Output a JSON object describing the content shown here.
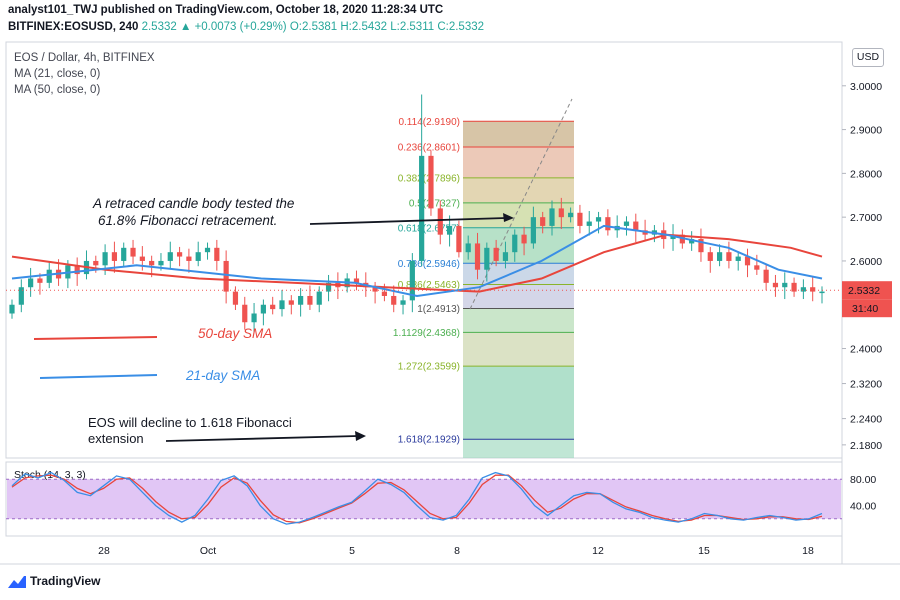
{
  "header": {
    "line1": "analyst101_TWJ published on TradingView.com, October 18, 2020 11:28:34 UTC",
    "symbol": "BITFINEX:EOSUSD, 240",
    "price": "2.5332",
    "change": "+0.0073 (+0.29%)",
    "ohlc": "O:2.5381 H:2.5432 L:2.5311 C:2.5332"
  },
  "legend": {
    "title": "EOS / Dollar, 4h, BITFINEX",
    "ma21": "MA (21, close, 0)",
    "ma50": "MA (50, close, 0)"
  },
  "currency": "USD",
  "last_price_label": "2.5332",
  "countdown_label": "31:40",
  "footer_brand": "TradingView",
  "annotations": {
    "fib_note_line1": "A retraced  candle body tested the",
    "fib_note_line2": "61.8% Fibonacci retracement.",
    "decline_line1": "EOS will decline to 1.618 Fibonacci",
    "decline_line2": "extension",
    "sma50": "50-day SMA",
    "sma21": "21-day SMA"
  },
  "stoch_label": "Stoch (14, 3, 3)",
  "colors": {
    "up": "#26a69a",
    "down": "#ef5350",
    "ma21": "#3a8ee6",
    "ma50": "#e8453c",
    "stoch_k": "#3a8ee6",
    "stoch_d": "#e8453c",
    "stoch_band": "#d7b3f2"
  },
  "chart_data": [
    {
      "type": "candlestick",
      "title": "EOS / Dollar, 4h, BITFINEX",
      "x_tick_labels": [
        "28",
        "Oct",
        "5",
        "8",
        "12",
        "15",
        "18"
      ],
      "y_tick_labels": [
        "3.0000",
        "2.9000",
        "2.8000",
        "2.7000",
        "2.6000",
        "2.4000",
        "2.3200",
        "2.2400",
        "2.1800"
      ],
      "ylim": [
        2.15,
        3.1
      ],
      "price_series": [
        2.5,
        2.54,
        2.56,
        2.55,
        2.58,
        2.56,
        2.59,
        2.57,
        2.6,
        2.59,
        2.62,
        2.6,
        2.63,
        2.61,
        2.6,
        2.59,
        2.6,
        2.62,
        2.61,
        2.6,
        2.62,
        2.63,
        2.6,
        2.53,
        2.5,
        2.46,
        2.48,
        2.5,
        2.49,
        2.51,
        2.5,
        2.52,
        2.5,
        2.53,
        2.55,
        2.54,
        2.56,
        2.55,
        2.54,
        2.53,
        2.52,
        2.5,
        2.51,
        2.6,
        2.84,
        2.72,
        2.66,
        2.68,
        2.62,
        2.64,
        2.58,
        2.63,
        2.6,
        2.62,
        2.66,
        2.64,
        2.7,
        2.68,
        2.72,
        2.7,
        2.71,
        2.68,
        2.69,
        2.7,
        2.67,
        2.68,
        2.69,
        2.67,
        2.66,
        2.67,
        2.65,
        2.66,
        2.64,
        2.65,
        2.62,
        2.6,
        2.62,
        2.6,
        2.61,
        2.59,
        2.58,
        2.55,
        2.54,
        2.55,
        2.53,
        2.54,
        2.53,
        2.53
      ],
      "spike_high": 2.98,
      "ma21": [
        [
          0,
          2.56
        ],
        [
          20,
          2.59
        ],
        [
          40,
          2.56
        ],
        [
          55,
          2.55
        ],
        [
          65,
          2.52
        ],
        [
          75,
          2.54
        ],
        [
          85,
          2.6
        ],
        [
          95,
          2.68
        ],
        [
          105,
          2.66
        ],
        [
          115,
          2.63
        ],
        [
          123,
          2.58
        ],
        [
          130,
          2.56
        ]
      ],
      "ma50": [
        [
          0,
          2.61
        ],
        [
          15,
          2.58
        ],
        [
          30,
          2.56
        ],
        [
          45,
          2.55
        ],
        [
          60,
          2.54
        ],
        [
          75,
          2.53
        ],
        [
          85,
          2.56
        ],
        [
          95,
          2.62
        ],
        [
          105,
          2.66
        ],
        [
          115,
          2.65
        ],
        [
          125,
          2.63
        ],
        [
          130,
          2.61
        ]
      ],
      "fibonacci": [
        {
          "ratio": "0.114",
          "price": 2.919,
          "label": "0.114(2.9190)",
          "color": "#e8453c"
        },
        {
          "ratio": "0.236",
          "price": 2.8601,
          "label": "0.236(2.8601)",
          "color": "#e8453c"
        },
        {
          "ratio": "0.382",
          "price": 2.7896,
          "label": "0.382(2.7896)",
          "color": "#8ab42b"
        },
        {
          "ratio": "0.5",
          "price": 2.7327,
          "label": "0.5(2.7327)",
          "color": "#4caf50"
        },
        {
          "ratio": "0.618",
          "price": 2.6757,
          "label": "0.618(2.6757)",
          "color": "#26a69a"
        },
        {
          "ratio": "0.786",
          "price": 2.5946,
          "label": "0.786(2.5946)",
          "color": "#2a7fd4"
        },
        {
          "ratio": "0.886",
          "price": 2.5463,
          "label": "0.886(2.5463)",
          "color": "#8ab42b"
        },
        {
          "ratio": "1",
          "price": 2.4913,
          "label": "1(2.4913)",
          "color": "#555555"
        },
        {
          "ratio": "1.1129",
          "price": 2.4368,
          "label": "1.1129(2.4368)",
          "color": "#4caf50"
        },
        {
          "ratio": "1.272",
          "price": 2.3599,
          "label": "1.272(2.3599)",
          "color": "#8ab42b"
        },
        {
          "ratio": "1.618",
          "price": 2.1929,
          "label": "1.618(2.1929)",
          "color": "#2a3a9c"
        }
      ]
    },
    {
      "type": "line",
      "title": "Stoch (14, 3, 3)",
      "y_tick_labels": [
        "80.00",
        "40.00"
      ],
      "ylim": [
        0,
        100
      ],
      "band": [
        20,
        80
      ],
      "k": [
        70,
        88,
        82,
        90,
        78,
        60,
        55,
        70,
        85,
        80,
        60,
        40,
        25,
        15,
        25,
        50,
        78,
        85,
        70,
        40,
        20,
        12,
        15,
        22,
        30,
        38,
        45,
        62,
        80,
        72,
        60,
        40,
        22,
        18,
        25,
        50,
        82,
        90,
        85,
        65,
        40,
        25,
        40,
        55,
        60,
        58,
        45,
        35,
        30,
        22,
        18,
        15,
        20,
        28,
        25,
        20,
        18,
        22,
        25,
        22,
        18,
        20,
        28
      ],
      "d": [
        68,
        82,
        85,
        86,
        80,
        66,
        58,
        66,
        80,
        82,
        66,
        46,
        30,
        20,
        22,
        42,
        68,
        82,
        74,
        48,
        26,
        16,
        14,
        20,
        28,
        36,
        44,
        58,
        74,
        75,
        64,
        46,
        28,
        20,
        22,
        44,
        72,
        86,
        86,
        70,
        48,
        30,
        36,
        50,
        58,
        58,
        48,
        38,
        32,
        25,
        20,
        16,
        18,
        25,
        25,
        22,
        19,
        20,
        23,
        23,
        20,
        19,
        24
      ]
    }
  ]
}
